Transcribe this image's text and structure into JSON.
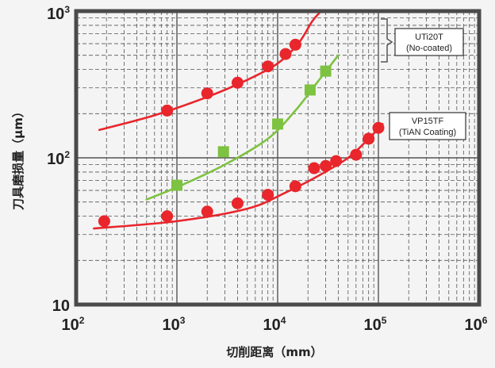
{
  "chart_data": {
    "type": "scatter",
    "title": "",
    "xlabel": "切削距离（mm）",
    "ylabel": "刀具磨损量（μm）",
    "xscale": "log",
    "yscale": "log",
    "xlim": [
      100,
      1000000
    ],
    "ylim": [
      10,
      1000
    ],
    "grid": true,
    "x_tick_labels": [
      {
        "base": "10",
        "exp": "2"
      },
      {
        "base": "10",
        "exp": "3"
      },
      {
        "base": "10",
        "exp": "4"
      },
      {
        "base": "10",
        "exp": "5"
      },
      {
        "base": "10",
        "exp": "6"
      }
    ],
    "y_tick_labels": [
      {
        "base": "10",
        "exp": ""
      },
      {
        "base": "10",
        "exp": "2"
      },
      {
        "base": "10",
        "exp": "3"
      }
    ],
    "series": [
      {
        "name": "UTi20T (No-coated)",
        "marker": "circle",
        "color": "#e8262c",
        "points": [
          [
            800,
            210
          ],
          [
            2000,
            275
          ],
          [
            4000,
            325
          ],
          [
            8000,
            420
          ],
          [
            12000,
            510
          ],
          [
            15000,
            590
          ]
        ],
        "fit": [
          [
            170,
            155
          ],
          [
            600,
            195
          ],
          [
            2000,
            260
          ],
          [
            5000,
            340
          ],
          [
            10000,
            440
          ],
          [
            16000,
            600
          ],
          [
            22000,
            850
          ],
          [
            27000,
            1000
          ]
        ]
      },
      {
        "name": "",
        "marker": "square",
        "color": "#7dc241",
        "points": [
          [
            1000,
            65
          ],
          [
            2900,
            110
          ],
          [
            10000,
            170
          ],
          [
            21000,
            290
          ],
          [
            30000,
            390
          ]
        ],
        "fit": [
          [
            500,
            52
          ],
          [
            1000,
            63
          ],
          [
            3000,
            90
          ],
          [
            8000,
            135
          ],
          [
            15000,
            210
          ],
          [
            25000,
            330
          ],
          [
            40000,
            500
          ]
        ]
      },
      {
        "name": "VP15TF (TiAN Coating)",
        "marker": "circle",
        "color": "#e8262c",
        "points": [
          [
            190,
            37
          ],
          [
            800,
            40
          ],
          [
            2000,
            43
          ],
          [
            4000,
            49
          ],
          [
            8000,
            56
          ],
          [
            15000,
            64
          ],
          [
            23000,
            85
          ],
          [
            30000,
            88
          ],
          [
            38000,
            95
          ],
          [
            60000,
            105
          ],
          [
            80000,
            135
          ],
          [
            100000,
            160
          ]
        ],
        "fit": [
          [
            150,
            33
          ],
          [
            1000,
            37
          ],
          [
            5000,
            45
          ],
          [
            12000,
            58
          ],
          [
            25000,
            75
          ],
          [
            50000,
            100
          ],
          [
            80000,
            135
          ],
          [
            110000,
            170
          ]
        ]
      }
    ],
    "annotations": [
      {
        "lines": [
          "UTi20T",
          "(No-coated)"
        ],
        "target_series": "UTi20T (No-coated)"
      },
      {
        "lines": [
          "VP15TF",
          "(TiAN Coating)"
        ],
        "target_series": "VP15TF (TiAN Coating)"
      }
    ]
  }
}
